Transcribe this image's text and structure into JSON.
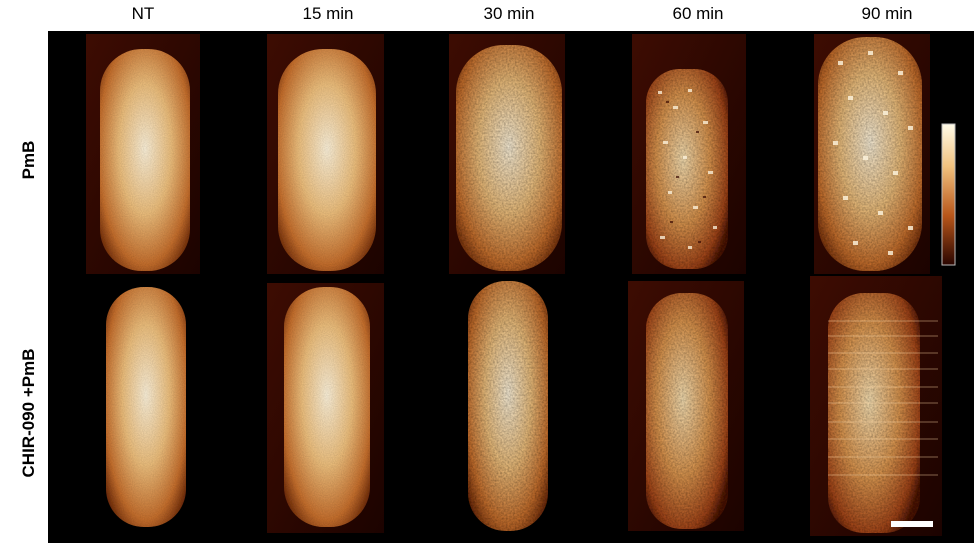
{
  "columns": [
    "NT",
    "15 min",
    "30 min",
    "60 min",
    "90 min"
  ],
  "rows": [
    "PmB",
    "CHIR-090 +PmB"
  ],
  "colormap": {
    "dark": "#2a0500",
    "mid": "#b8561a",
    "light": "#fff3d6"
  },
  "colorbar": {
    "present": true
  },
  "scale_bar": {
    "present": true,
    "color": "#ffffff"
  }
}
